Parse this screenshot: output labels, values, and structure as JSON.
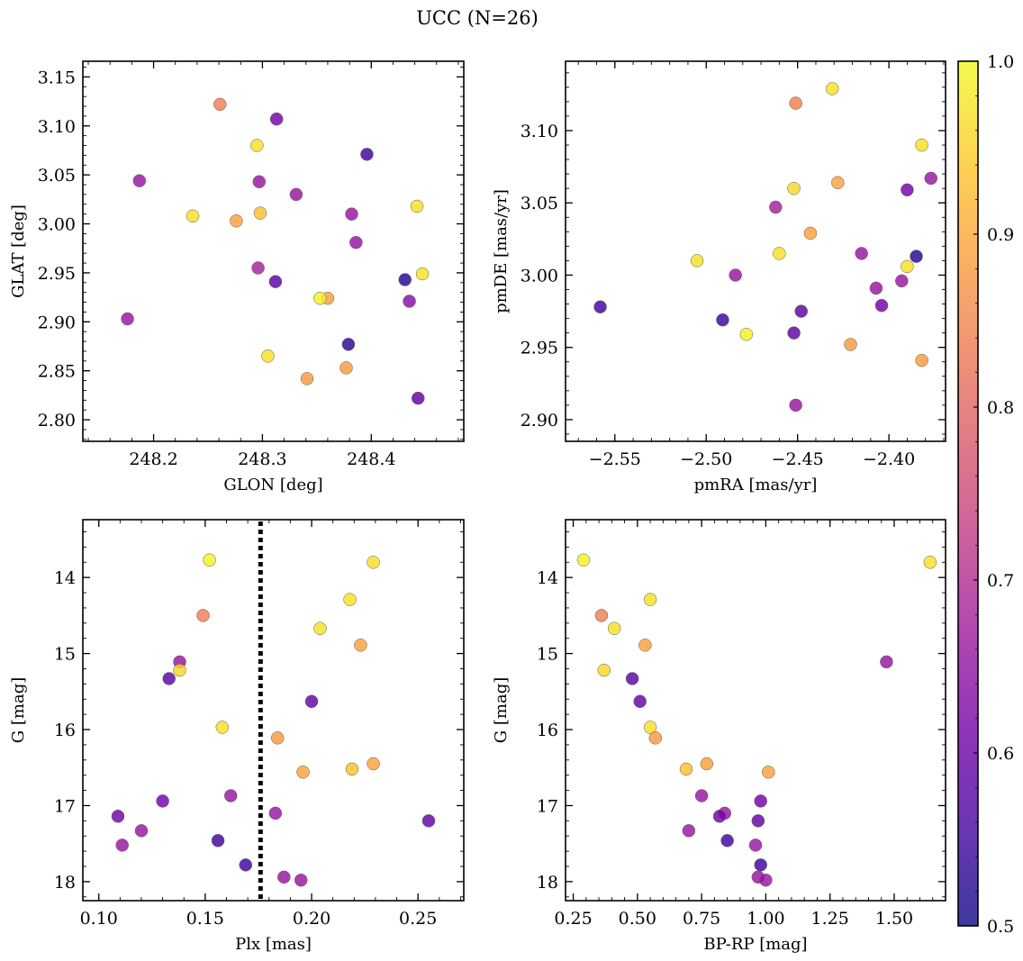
{
  "figure": {
    "title": "UCC (N=26)"
  },
  "colorbar": {
    "range": [
      0.5,
      1.0
    ],
    "ticks": [
      0.5,
      0.6,
      0.7,
      0.8,
      0.9,
      1.0
    ],
    "tick_labels": [
      "0.5",
      "0.6",
      "0.7",
      "0.8",
      "0.9",
      "1.0"
    ],
    "colormap": "plasma",
    "stops": [
      "#0d0887",
      "#46039f",
      "#7201a8",
      "#9c179e",
      "#bd3786",
      "#d8576b",
      "#ed7953",
      "#fb9f3a",
      "#fdca26",
      "#f0f921"
    ],
    "alpha": 0.8
  },
  "chart_data": [
    {
      "type": "scatter",
      "xlabel": "GLON [deg]",
      "ylabel": "GLAT [deg]",
      "xlim": [
        248.135,
        248.485
      ],
      "ylim": [
        2.778,
        3.166
      ],
      "inverted_y": false,
      "xticks": [
        248.2,
        248.3,
        248.4
      ],
      "xtick_labels": [
        "248.2",
        "248.3",
        "248.4"
      ],
      "yticks": [
        2.8,
        2.85,
        2.9,
        2.95,
        3.0,
        3.05,
        3.1,
        3.15
      ],
      "ytick_labels": [
        "2.80",
        "2.85",
        "2.90",
        "2.95",
        "3.00",
        "3.05",
        "3.10",
        "3.15"
      ],
      "points": [
        {
          "x": 248.261,
          "y": 3.122,
          "c": 0.84
        },
        {
          "x": 248.313,
          "y": 3.107,
          "c": 0.61
        },
        {
          "x": 248.295,
          "y": 3.08,
          "c": 0.97
        },
        {
          "x": 248.396,
          "y": 3.071,
          "c": 0.55
        },
        {
          "x": 248.187,
          "y": 3.044,
          "c": 0.66
        },
        {
          "x": 248.297,
          "y": 3.043,
          "c": 0.66
        },
        {
          "x": 248.331,
          "y": 3.03,
          "c": 0.66
        },
        {
          "x": 248.442,
          "y": 3.018,
          "c": 0.97
        },
        {
          "x": 248.298,
          "y": 3.011,
          "c": 0.93
        },
        {
          "x": 248.382,
          "y": 3.01,
          "c": 0.66
        },
        {
          "x": 248.236,
          "y": 3.008,
          "c": 0.97
        },
        {
          "x": 248.276,
          "y": 3.003,
          "c": 0.89
        },
        {
          "x": 248.386,
          "y": 2.981,
          "c": 0.66
        },
        {
          "x": 248.296,
          "y": 2.955,
          "c": 0.68
        },
        {
          "x": 248.447,
          "y": 2.949,
          "c": 0.97
        },
        {
          "x": 248.431,
          "y": 2.943,
          "c": 0.52
        },
        {
          "x": 248.312,
          "y": 2.941,
          "c": 0.58
        },
        {
          "x": 248.36,
          "y": 2.924,
          "c": 0.89
        },
        {
          "x": 248.353,
          "y": 2.924,
          "c": 0.99
        },
        {
          "x": 248.435,
          "y": 2.921,
          "c": 0.64
        },
        {
          "x": 248.176,
          "y": 2.903,
          "c": 0.66
        },
        {
          "x": 248.379,
          "y": 2.877,
          "c": 0.53
        },
        {
          "x": 248.305,
          "y": 2.865,
          "c": 0.97
        },
        {
          "x": 248.377,
          "y": 2.853,
          "c": 0.88
        },
        {
          "x": 248.341,
          "y": 2.842,
          "c": 0.88
        },
        {
          "x": 248.443,
          "y": 2.822,
          "c": 0.59
        }
      ]
    },
    {
      "type": "scatter",
      "xlabel": "pmRA [mas/yr]",
      "ylabel": "pmDE [mas/yr]",
      "xlim": [
        -2.577,
        -2.369
      ],
      "ylim": [
        2.885,
        3.148
      ],
      "inverted_y": false,
      "xticks": [
        -2.55,
        -2.5,
        -2.45,
        -2.4
      ],
      "xtick_labels": [
        "−2.55",
        "−2.50",
        "−2.45",
        "−2.40"
      ],
      "yticks": [
        2.9,
        2.95,
        3.0,
        3.05,
        3.1
      ],
      "ytick_labels": [
        "2.90",
        "2.95",
        "3.00",
        "3.05",
        "3.10"
      ],
      "points": [
        {
          "x": -2.431,
          "y": 3.129,
          "c": 0.97
        },
        {
          "x": -2.451,
          "y": 3.119,
          "c": 0.84
        },
        {
          "x": -2.382,
          "y": 3.09,
          "c": 0.97
        },
        {
          "x": -2.377,
          "y": 3.067,
          "c": 0.66
        },
        {
          "x": -2.428,
          "y": 3.064,
          "c": 0.89
        },
        {
          "x": -2.452,
          "y": 3.06,
          "c": 0.96
        },
        {
          "x": -2.39,
          "y": 3.059,
          "c": 0.61
        },
        {
          "x": -2.462,
          "y": 3.047,
          "c": 0.68
        },
        {
          "x": -2.443,
          "y": 3.029,
          "c": 0.89
        },
        {
          "x": -2.46,
          "y": 3.015,
          "c": 0.97
        },
        {
          "x": -2.415,
          "y": 3.015,
          "c": 0.66
        },
        {
          "x": -2.385,
          "y": 3.013,
          "c": 0.52
        },
        {
          "x": -2.505,
          "y": 3.01,
          "c": 0.97
        },
        {
          "x": -2.39,
          "y": 3.006,
          "c": 0.97
        },
        {
          "x": -2.484,
          "y": 3.0,
          "c": 0.66
        },
        {
          "x": -2.393,
          "y": 2.996,
          "c": 0.66
        },
        {
          "x": -2.407,
          "y": 2.991,
          "c": 0.66
        },
        {
          "x": -2.404,
          "y": 2.979,
          "c": 0.61
        },
        {
          "x": -2.558,
          "y": 2.978,
          "c": 0.55
        },
        {
          "x": -2.448,
          "y": 2.975,
          "c": 0.58
        },
        {
          "x": -2.491,
          "y": 2.969,
          "c": 0.55
        },
        {
          "x": -2.452,
          "y": 2.96,
          "c": 0.59
        },
        {
          "x": -2.478,
          "y": 2.959,
          "c": 0.99
        },
        {
          "x": -2.421,
          "y": 2.952,
          "c": 0.88
        },
        {
          "x": -2.382,
          "y": 2.941,
          "c": 0.88
        },
        {
          "x": -2.451,
          "y": 2.91,
          "c": 0.66
        }
      ]
    },
    {
      "type": "scatter",
      "xlabel": "Plx [mas]",
      "ylabel": "G [mag]",
      "xlim": [
        0.0925,
        0.2715
      ],
      "ylim": [
        18.25,
        13.24
      ],
      "inverted_y": true,
      "xticks": [
        0.1,
        0.15,
        0.2,
        0.25
      ],
      "xtick_labels": [
        "0.10",
        "0.15",
        "0.20",
        "0.25"
      ],
      "yticks": [
        14,
        15,
        16,
        17,
        18
      ],
      "ytick_labels": [
        "14",
        "15",
        "16",
        "17",
        "18"
      ],
      "vline": {
        "x": 0.176,
        "style": "dotted"
      },
      "points": [
        {
          "x": 0.152,
          "y": 13.77,
          "c": 0.99
        },
        {
          "x": 0.229,
          "y": 13.8,
          "c": 0.97
        },
        {
          "x": 0.218,
          "y": 14.29,
          "c": 0.97
        },
        {
          "x": 0.149,
          "y": 14.5,
          "c": 0.84
        },
        {
          "x": 0.204,
          "y": 14.67,
          "c": 0.97
        },
        {
          "x": 0.223,
          "y": 14.89,
          "c": 0.89
        },
        {
          "x": 0.138,
          "y": 15.11,
          "c": 0.66
        },
        {
          "x": 0.138,
          "y": 15.22,
          "c": 0.96
        },
        {
          "x": 0.133,
          "y": 15.33,
          "c": 0.58
        },
        {
          "x": 0.2,
          "y": 15.63,
          "c": 0.59
        },
        {
          "x": 0.158,
          "y": 15.97,
          "c": 0.97
        },
        {
          "x": 0.184,
          "y": 16.11,
          "c": 0.88
        },
        {
          "x": 0.229,
          "y": 16.45,
          "c": 0.89
        },
        {
          "x": 0.219,
          "y": 16.52,
          "c": 0.93
        },
        {
          "x": 0.196,
          "y": 16.56,
          "c": 0.89
        },
        {
          "x": 0.162,
          "y": 16.87,
          "c": 0.66
        },
        {
          "x": 0.13,
          "y": 16.94,
          "c": 0.61
        },
        {
          "x": 0.183,
          "y": 17.1,
          "c": 0.66
        },
        {
          "x": 0.109,
          "y": 17.14,
          "c": 0.61
        },
        {
          "x": 0.255,
          "y": 17.2,
          "c": 0.59
        },
        {
          "x": 0.12,
          "y": 17.33,
          "c": 0.66
        },
        {
          "x": 0.156,
          "y": 17.46,
          "c": 0.55
        },
        {
          "x": 0.111,
          "y": 17.52,
          "c": 0.66
        },
        {
          "x": 0.169,
          "y": 17.78,
          "c": 0.55
        },
        {
          "x": 0.187,
          "y": 17.94,
          "c": 0.66
        },
        {
          "x": 0.195,
          "y": 17.98,
          "c": 0.66
        }
      ]
    },
    {
      "type": "scatter",
      "xlabel": "BP-RP [mag]",
      "ylabel": "G [mag]",
      "xlim": [
        0.22,
        1.7
      ],
      "ylim": [
        18.25,
        13.24
      ],
      "inverted_y": true,
      "xticks": [
        0.25,
        0.5,
        0.75,
        1.0,
        1.25,
        1.5
      ],
      "xtick_labels": [
        "0.25",
        "0.50",
        "0.75",
        "1.00",
        "1.25",
        "1.50"
      ],
      "yticks": [
        14,
        15,
        16,
        17,
        18
      ],
      "ytick_labels": [
        "14",
        "15",
        "16",
        "17",
        "18"
      ],
      "points": [
        {
          "x": 0.29,
          "y": 13.77,
          "c": 0.99
        },
        {
          "x": 1.64,
          "y": 13.8,
          "c": 0.97
        },
        {
          "x": 0.55,
          "y": 14.29,
          "c": 0.97
        },
        {
          "x": 0.36,
          "y": 14.5,
          "c": 0.84
        },
        {
          "x": 0.41,
          "y": 14.67,
          "c": 0.97
        },
        {
          "x": 0.53,
          "y": 14.89,
          "c": 0.89
        },
        {
          "x": 1.47,
          "y": 15.11,
          "c": 0.66
        },
        {
          "x": 0.37,
          "y": 15.22,
          "c": 0.96
        },
        {
          "x": 0.48,
          "y": 15.33,
          "c": 0.58
        },
        {
          "x": 0.51,
          "y": 15.63,
          "c": 0.59
        },
        {
          "x": 0.55,
          "y": 15.97,
          "c": 0.97
        },
        {
          "x": 0.57,
          "y": 16.11,
          "c": 0.88
        },
        {
          "x": 0.77,
          "y": 16.45,
          "c": 0.89
        },
        {
          "x": 0.69,
          "y": 16.52,
          "c": 0.93
        },
        {
          "x": 1.01,
          "y": 16.56,
          "c": 0.89
        },
        {
          "x": 0.75,
          "y": 16.87,
          "c": 0.66
        },
        {
          "x": 0.98,
          "y": 16.94,
          "c": 0.61
        },
        {
          "x": 0.84,
          "y": 17.1,
          "c": 0.66
        },
        {
          "x": 0.82,
          "y": 17.14,
          "c": 0.61
        },
        {
          "x": 0.97,
          "y": 17.2,
          "c": 0.59
        },
        {
          "x": 0.7,
          "y": 17.33,
          "c": 0.66
        },
        {
          "x": 0.85,
          "y": 17.46,
          "c": 0.55
        },
        {
          "x": 0.96,
          "y": 17.52,
          "c": 0.66
        },
        {
          "x": 0.98,
          "y": 17.78,
          "c": 0.55
        },
        {
          "x": 0.97,
          "y": 17.94,
          "c": 0.66
        },
        {
          "x": 1.0,
          "y": 17.98,
          "c": 0.66
        }
      ]
    }
  ]
}
